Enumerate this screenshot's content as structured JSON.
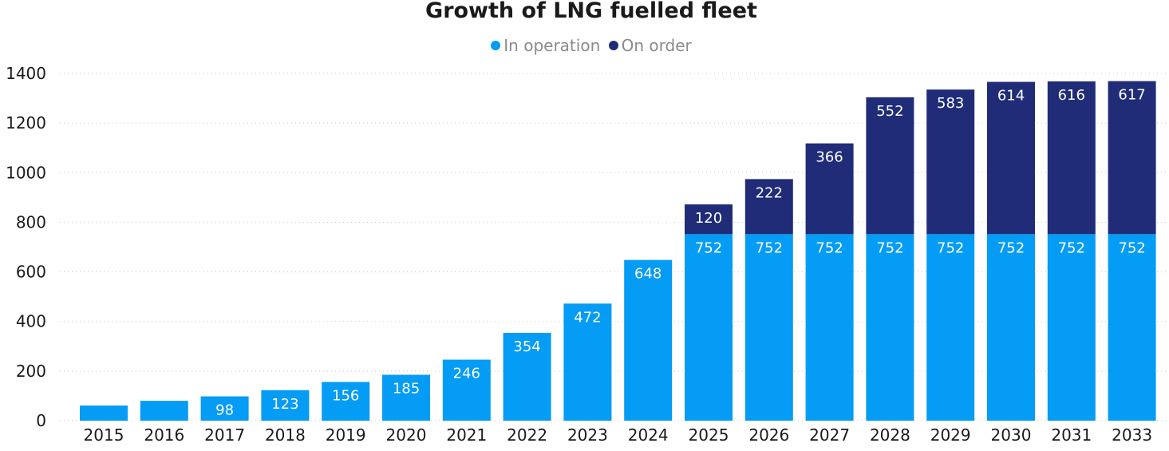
{
  "chart_data": {
    "type": "bar",
    "stacked": true,
    "title": "Growth of LNG fuelled fleet",
    "xlabel": "",
    "ylabel": "",
    "ylim": [
      0,
      1400
    ],
    "yticks": [
      0,
      200,
      400,
      600,
      800,
      1000,
      1200,
      1400
    ],
    "grid": true,
    "legend_position": "top-center",
    "categories": [
      "2015",
      "2016",
      "2017",
      "2018",
      "2019",
      "2020",
      "2021",
      "2022",
      "2023",
      "2024",
      "2025",
      "2026",
      "2027",
      "2028",
      "2029",
      "2030",
      "2031",
      "2033"
    ],
    "series": [
      {
        "name": "In operation",
        "color": "#049cf4",
        "values": [
          61,
          80,
          98,
          123,
          156,
          185,
          246,
          354,
          472,
          648,
          752,
          752,
          752,
          752,
          752,
          752,
          752,
          752
        ],
        "labels": [
          "",
          "",
          "98",
          "123",
          "156",
          "185",
          "246",
          "354",
          "472",
          "648",
          "752",
          "752",
          "752",
          "752",
          "752",
          "752",
          "752",
          "752"
        ]
      },
      {
        "name": "On order",
        "color": "#202c78",
        "values": [
          0,
          0,
          0,
          0,
          0,
          0,
          0,
          0,
          0,
          0,
          120,
          222,
          366,
          552,
          583,
          614,
          616,
          617
        ],
        "labels": [
          "",
          "",
          "",
          "",
          "",
          "",
          "",
          "",
          "",
          "",
          "120",
          "222",
          "366",
          "552",
          "583",
          "614",
          "616",
          "617"
        ]
      }
    ]
  }
}
